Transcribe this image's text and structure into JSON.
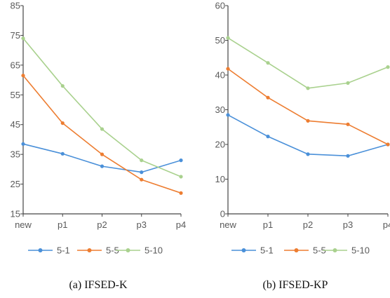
{
  "chart_data": [
    {
      "type": "line",
      "caption": "(a)  IFSED-K",
      "categories": [
        "new",
        "p1",
        "p2",
        "p3",
        "p4"
      ],
      "ylim": [
        15,
        85
      ],
      "yticks": [
        15,
        25,
        35,
        45,
        55,
        65,
        75,
        85
      ],
      "grid": false,
      "legend_position": "bottom",
      "series": [
        {
          "name": "5-1",
          "color": "#4a90d9",
          "values": [
            38.5,
            35.2,
            31.0,
            29.0,
            33.0
          ]
        },
        {
          "name": "5-5",
          "color": "#ed7d31",
          "values": [
            61.5,
            45.5,
            35.0,
            26.5,
            22.0
          ]
        },
        {
          "name": "5-10",
          "color": "#a9d18e",
          "values": [
            74.0,
            58.0,
            43.5,
            33.0,
            27.5
          ]
        }
      ]
    },
    {
      "type": "line",
      "caption": "(b)  IFSED-KP",
      "categories": [
        "new",
        "p1",
        "p2",
        "p3",
        "p4"
      ],
      "ylim": [
        0,
        60
      ],
      "yticks": [
        0,
        10,
        20,
        30,
        40,
        50,
        60
      ],
      "grid": false,
      "legend_position": "bottom",
      "series": [
        {
          "name": "5-1",
          "color": "#4a90d9",
          "values": [
            28.5,
            22.3,
            17.2,
            16.7,
            20.0
          ]
        },
        {
          "name": "5-5",
          "color": "#ed7d31",
          "values": [
            41.8,
            33.5,
            26.8,
            25.8,
            20.0
          ]
        },
        {
          "name": "5-10",
          "color": "#a9d18e",
          "values": [
            50.7,
            43.5,
            36.2,
            37.7,
            42.3
          ]
        }
      ]
    }
  ]
}
